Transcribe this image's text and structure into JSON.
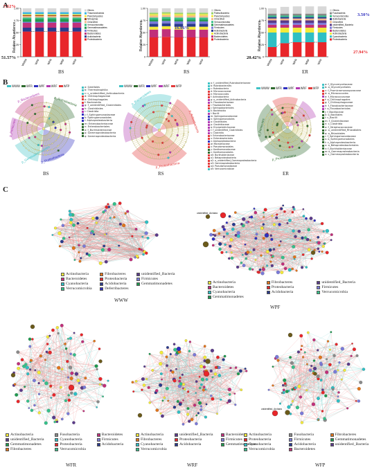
{
  "panels": {
    "a": "A",
    "b": "B",
    "c": "C"
  },
  "barcharts": [
    {
      "group": "BS",
      "ylabel": "Relative Abundance",
      "categories": [
        "WWW",
        "WPF",
        "WFR",
        "WRF",
        "WFP"
      ],
      "top_pct": "7.52%",
      "bottom_pct": "51.57%",
      "legend": [
        "Others",
        "Thaumarchaeota",
        "Planctomycetes",
        "Nitrospirae",
        "Chloroflexi",
        "Verrucomicrobia",
        "Gemmatimonadetes",
        "Firmicutes",
        "Bacteroidetes",
        "Acidobacteria",
        "Proteobacteria"
      ]
    },
    {
      "group": "RS",
      "ylabel": "Relative Abundance",
      "categories": [
        "WWW",
        "WPF",
        "WFR",
        "WRF",
        "WFP"
      ],
      "mid_pct": "16.06%",
      "legend": [
        "Others",
        "Patescibacteria",
        "Planctomycetes",
        "Chloroflexi",
        "Verrucomicrobia",
        "Gemmatimonadetes",
        "Firmicutes",
        "Acidobacteria",
        "Actinobacteria",
        "Bacteroidetes",
        "Proteobacteria"
      ]
    },
    {
      "group": "ER",
      "ylabel": "Relative Abundance",
      "categories": [
        "WWW",
        "WPF",
        "WFR",
        "WRF",
        "WFP"
      ],
      "top_pct": "3.50%",
      "bottom_pct": "20.42%",
      "red_pct": "27.94%",
      "legend": [
        "Others",
        "Fusobacteria",
        "Verrucomicrobia",
        "Acidobacteria",
        "Chloroflexi",
        "unidentified_Bacteria",
        "Firmicutes",
        "Bacteroidetes",
        "Actinobacteria",
        "Cyanobacteria",
        "Proteobacteria"
      ]
    }
  ],
  "chart_data": [
    {
      "type": "bar",
      "title": "",
      "ylabel": "Relative Abundance",
      "categories": [
        "WWW",
        "WPF",
        "WFR",
        "WRF",
        "WFP"
      ],
      "ylim": [
        0,
        1
      ],
      "series": [
        {
          "name": "Proteobacteria",
          "values": [
            0.52,
            0.52,
            0.52,
            0.52,
            0.52
          ]
        },
        {
          "name": "Acidobacteria",
          "values": [
            0.08,
            0.08,
            0.08,
            0.08,
            0.08
          ]
        },
        {
          "name": "Bacteroidetes",
          "values": [
            0.1,
            0.1,
            0.1,
            0.1,
            0.1
          ]
        },
        {
          "name": "Firmicutes",
          "values": [
            0.02,
            0.02,
            0.02,
            0.02,
            0.02
          ]
        },
        {
          "name": "Gemmatimonadetes",
          "values": [
            0.06,
            0.06,
            0.06,
            0.06,
            0.06
          ]
        },
        {
          "name": "Verrucomicrobia",
          "values": [
            0.03,
            0.03,
            0.03,
            0.03,
            0.03
          ]
        },
        {
          "name": "Chloroflexi",
          "values": [
            0.03,
            0.03,
            0.03,
            0.03,
            0.03
          ]
        },
        {
          "name": "Nitrospirae",
          "values": [
            0.02,
            0.02,
            0.02,
            0.02,
            0.02
          ]
        },
        {
          "name": "Planctomycetes",
          "values": [
            0.02,
            0.02,
            0.02,
            0.02,
            0.02
          ]
        },
        {
          "name": "Thaumarchaeota",
          "values": [
            0.04,
            0.04,
            0.04,
            0.04,
            0.04
          ]
        },
        {
          "name": "Others",
          "values": [
            0.08,
            0.08,
            0.08,
            0.08,
            0.08
          ]
        }
      ]
    },
    {
      "type": "bar",
      "title": "",
      "ylabel": "Relative Abundance",
      "categories": [
        "WWW",
        "WPF",
        "WFR",
        "WRF",
        "WFP"
      ],
      "ylim": [
        0,
        1
      ],
      "series": [
        {
          "name": "Proteobacteria",
          "values": [
            0.4,
            0.41,
            0.4,
            0.4,
            0.4
          ]
        },
        {
          "name": "Bacteroidetes",
          "values": [
            0.16,
            0.16,
            0.16,
            0.16,
            0.16
          ]
        },
        {
          "name": "Actinobacteria",
          "values": [
            0.06,
            0.06,
            0.06,
            0.06,
            0.06
          ]
        },
        {
          "name": "Acidobacteria",
          "values": [
            0.06,
            0.06,
            0.06,
            0.06,
            0.06
          ]
        },
        {
          "name": "Firmicutes",
          "values": [
            0.05,
            0.05,
            0.05,
            0.05,
            0.05
          ]
        },
        {
          "name": "Gemmatimonadetes",
          "values": [
            0.04,
            0.04,
            0.04,
            0.04,
            0.04
          ]
        },
        {
          "name": "Verrucomicrobia",
          "values": [
            0.04,
            0.04,
            0.04,
            0.04,
            0.04
          ]
        },
        {
          "name": "Chloroflexi",
          "values": [
            0.04,
            0.04,
            0.04,
            0.04,
            0.04
          ]
        },
        {
          "name": "Planctomycetes",
          "values": [
            0.03,
            0.03,
            0.03,
            0.03,
            0.03
          ]
        },
        {
          "name": "Patescibacteria",
          "values": [
            0.03,
            0.03,
            0.03,
            0.03,
            0.03
          ]
        },
        {
          "name": "Others",
          "values": [
            0.09,
            0.08,
            0.09,
            0.09,
            0.09
          ]
        }
      ]
    },
    {
      "type": "bar",
      "title": "",
      "ylabel": "Relative Abundance",
      "categories": [
        "WWW",
        "WPF",
        "WFR",
        "WRF",
        "WFP"
      ],
      "ylim": [
        0,
        1
      ],
      "series": [
        {
          "name": "Proteobacteria",
          "values": [
            0.2,
            0.28,
            0.3,
            0.3,
            0.3
          ]
        },
        {
          "name": "Cyanobacteria",
          "values": [
            0.3,
            0.22,
            0.2,
            0.2,
            0.2
          ]
        },
        {
          "name": "Actinobacteria",
          "values": [
            0.1,
            0.1,
            0.1,
            0.1,
            0.1
          ]
        },
        {
          "name": "Bacteroidetes",
          "values": [
            0.06,
            0.06,
            0.06,
            0.06,
            0.06
          ]
        },
        {
          "name": "Firmicutes",
          "values": [
            0.04,
            0.04,
            0.04,
            0.04,
            0.04
          ]
        },
        {
          "name": "unidentified_Bacteria",
          "values": [
            0.05,
            0.05,
            0.05,
            0.05,
            0.05
          ]
        },
        {
          "name": "Chloroflexi",
          "values": [
            0.04,
            0.04,
            0.04,
            0.04,
            0.04
          ]
        },
        {
          "name": "Acidobacteria",
          "values": [
            0.03,
            0.03,
            0.03,
            0.03,
            0.03
          ]
        },
        {
          "name": "Verrucomicrobia",
          "values": [
            0.03,
            0.03,
            0.03,
            0.03,
            0.03
          ]
        },
        {
          "name": "Fusobacteria",
          "values": [
            0.04,
            0.04,
            0.04,
            0.04,
            0.04
          ]
        },
        {
          "name": "Others",
          "values": [
            0.11,
            0.14,
            0.15,
            0.15,
            0.15
          ]
        }
      ]
    }
  ],
  "cladograms": [
    {
      "group": "BS",
      "legend": [
        "WWW",
        "WFR",
        "WPF",
        "WRF",
        "WFP"
      ]
    },
    {
      "group": "RS",
      "legend": [
        "WWW",
        "WFR",
        "WPF",
        "WRF",
        "WFP"
      ]
    },
    {
      "group": "ER",
      "legend": [
        "WWW",
        "WFR",
        "WPF",
        "WRF",
        "WFP"
      ]
    }
  ],
  "clade_lists": {
    "bs": [
      "a: Gaiellales",
      "b: Thermoleophilia",
      "c: c_unidentified_Actinobacteria",
      "d: Chitinophagaceae",
      "e: Chitinophagales",
      "f: Bacteroidia",
      "g: f_unidentified_Clostridiales",
      "h: Clostridiales",
      "i: Clostridia",
      "j: f_Sphingomonadaceae",
      "k: Sphingomonadales",
      "l: Alphaproteobacteria",
      "m: Enterobacteriaceae",
      "n: Enterobacteriales",
      "o: f_Burkholderiaceae",
      "p: Gammaproteobacteria",
      "q: Gammaproteobacteria"
    ],
    "rs": [
      "a: f_unidentified_Rubrobacteriaceae",
      "b: Rubrobacterales",
      "c: Rubrobacteria",
      "d: Micrococcaceae",
      "e: Micrococcales",
      "f: Actinobacteria",
      "g: o_unidentified_Actinobacteria",
      "h: Flavobacteriaceae",
      "i: Flavobacteriales",
      "j: Sphingobacteriales",
      "k: Bacteroidia",
      "l: Bacilli",
      "m: Sphingomonadaceae",
      "n: Sphingomonadales",
      "o: Clostridiales",
      "p: Clostridiaceae",
      "q: Erysipelotrichaceae",
      "r: f_unidentified_Clostridiales",
      "s: Clostridia",
      "t: Enterobacteriaceae",
      "u: Enterobacteriales",
      "v: Alphaproteobacteria",
      "w: Moraxellaceae",
      "x: Pseudomonadales",
      "y: Xanthomonadaceae",
      "z: Xanthomonadales",
      "a0: Burkholderiaceae",
      "a1: Betaproteobacteria",
      "a2: o_unidentified_Gammaproteobacteria",
      "a3: Gammaproteobacteria",
      "a4: Pseudomonadaceae",
      "a5: Verrucomicrobiae"
    ],
    "er": [
      "a: f_Glycomycetaceae",
      "b: o_Glycomycetales",
      "c: f_Promicromonosporaceae",
      "d: o_Micrococcales",
      "e: f_Micrococcaceae",
      "f: o_Chitinophagales",
      "g: f_Chitinophagaceae",
      "h: f_Flavobacteriaceae",
      "i: o_Flavobacteriales",
      "j: f_Bacillaceae",
      "k: o_Bacillales",
      "l: c_Bacilli",
      "m: f_Clostridiaceae",
      "n: c_Clostridia",
      "o: f_Streptococcaceae",
      "p: o_unidentified_Rhizobiales",
      "q: o_Rhizobiales",
      "r: f_Sphingomonadaceae",
      "s: o_Sphingomonadales",
      "t: c_Alphaproteobacteria",
      "u: o_Betaproteobacteriales",
      "v: f_Burkholderiaceae",
      "w: o_Gammaproteobacteria",
      "x: c_Gammaproteobacteria"
    ]
  },
  "cladogram_labels": {
    "bs": {
      "title": "BS",
      "actino": "p_Actinobacteria",
      "bacteroid": "p_Bacteroidetes",
      "firm": "p_Firmicutes",
      "gemma": "p_Gemmatimonadetes",
      "proteo": "p_Proteobacteria"
    },
    "rs": {
      "title": "RS",
      "bacteroid": "p_Bacteroidetes",
      "actino": "p_Actinobacteria",
      "proteo": "p_Proteobacteria"
    },
    "er": {
      "title": "ER",
      "firm": "p_Firmicutes",
      "proteo": "p_Proteobacteria"
    }
  },
  "networks": {
    "www": {
      "title": "WWW",
      "legend": [
        "Actinobacteria",
        "Fibrobacteres",
        "unidentified_Bacteria",
        "Bacteroidetes",
        "Proteobacteria",
        "Firmicutes",
        "Cyanobacteria",
        "Acidobacteria",
        "Gemmatimonadetes",
        "Verrucomicrobia",
        "Deferribacteres"
      ]
    },
    "wpf": {
      "title": "WPF",
      "legend": [
        "Actinobacteria",
        "Fibrobacteres",
        "unidentified_Bacteria",
        "Bacteroidetes",
        "Proteobacteria",
        "Firmicutes",
        "Cyanobacteria",
        "Acidobacteria",
        "Verrucomicrobia",
        "Gemmatimonadetes"
      ],
      "node_label": "unidentified_Archaea"
    },
    "wfr": {
      "title": "WFR",
      "legend": [
        "Actinobacteria",
        "Fusobacteria",
        "Bacteroidetes",
        "unidentified_Bacteria",
        "Cyanobacteria",
        "Firmicutes",
        "Gemmatimonadetes",
        "Proteobacteria",
        "Acidobacteria",
        "Fibrobacteres",
        "Verrucomicrobia"
      ]
    },
    "wrf": {
      "title": "WRF",
      "legend": [
        "Actinobacteria",
        "unidentified_Bacteria",
        "Bacteroidetes",
        "Fibrobacteres",
        "Proteobacteria",
        "Firmicutes",
        "Cyanobacteria",
        "Acidobacteria",
        "Gemmatimonadetes",
        "Verrucomicrobia"
      ]
    },
    "wfp": {
      "title": "WFP",
      "legend": [
        "Actinobacteria",
        "Fusobacteria",
        "Fibrobacteres",
        "Proteobacteria",
        "Firmicutes",
        "Gemmatimonadetes",
        "Cyanobacteria",
        "Acidobacteria",
        "unidentified_Bacteria",
        "Verrucomicrobia",
        "Bacteroidetes"
      ],
      "node_label": "unidentified_Archaea"
    }
  },
  "colors": {
    "Proteobacteria": "#e8262a",
    "Acidobacteria": "#2a3a8c",
    "Bacteroidetes": "#c0307a",
    "Firmicutes": "#7a7ad8",
    "Gemmatimonadetes": "#1f9a50",
    "Verrucomicrobia": "#35c08a",
    "Chloroflexi": "#f2b98c",
    "Nitrospirae": "#a04a1a",
    "Planctomycetes": "#f1e94a",
    "Thaumarchaeota": "#38b6e0",
    "Patescibacteria": "#9bd36b",
    "Actinobacteria": "#f3ea3a",
    "Cyanobacteria": "#2fbfc4",
    "unidentified_Bacteria": "#5a3a8a",
    "Fusobacteria": "#8a8a8a",
    "Fibrobacteres": "#e0751b",
    "Deferribacteres": "#2f2fbf",
    "Others": "#d8d8d8",
    "WWW": "#3fc2c5",
    "WFR": "#2e6a2e",
    "WPF": "#2f2fbf",
    "WRF": "#b13ab1",
    "WFP": "#e23a3a"
  }
}
